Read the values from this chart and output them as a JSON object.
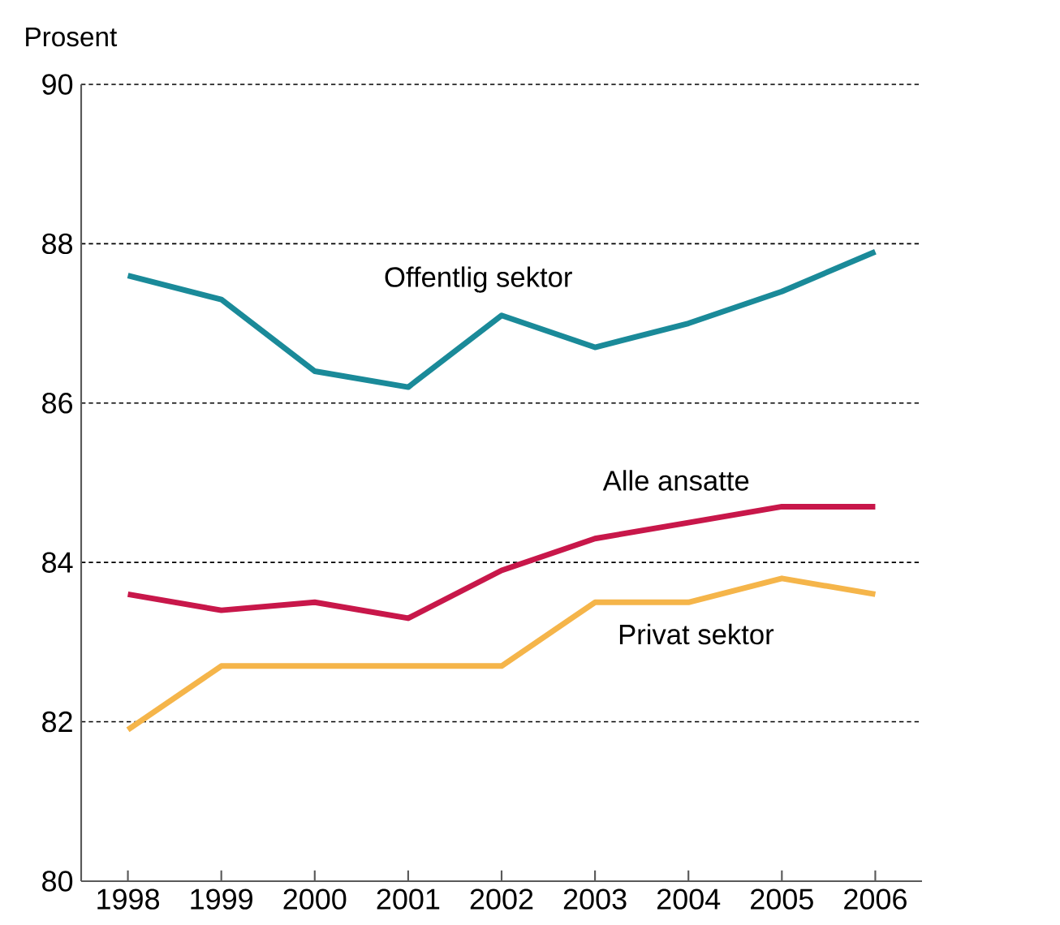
{
  "chart_data": {
    "type": "line",
    "ylabel": "Prosent",
    "categories": [
      "1998",
      "1999",
      "2000",
      "2001",
      "2002",
      "2003",
      "2004",
      "2005",
      "2006"
    ],
    "series": [
      {
        "name": "Offentlig sektor",
        "color": "#1a8a99",
        "values": [
          87.6,
          87.3,
          86.4,
          86.2,
          87.1,
          86.7,
          87.0,
          87.4,
          87.9
        ]
      },
      {
        "name": "Alle ansatte",
        "color": "#c8174a",
        "values": [
          83.6,
          83.4,
          83.5,
          83.3,
          83.9,
          84.3,
          84.5,
          84.7,
          84.7
        ]
      },
      {
        "name": "Privat sektor",
        "color": "#f5b54a",
        "values": [
          81.9,
          82.7,
          82.7,
          82.7,
          82.7,
          83.5,
          83.5,
          83.8,
          83.6
        ]
      }
    ],
    "ylim": [
      80,
      90
    ],
    "yticks": [
      80,
      82,
      84,
      86,
      88,
      90
    ],
    "grid": "y",
    "legend": false,
    "marker": "none",
    "line_style": "solid"
  }
}
